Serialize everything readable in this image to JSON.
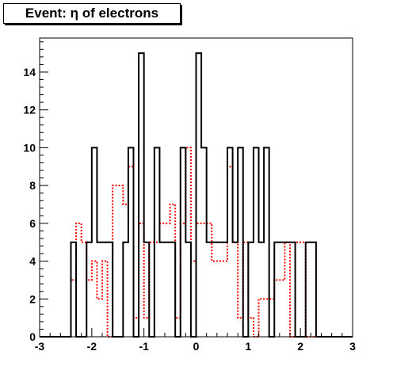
{
  "chart_data": {
    "type": "step-histogram",
    "title": "Event: η of electrons",
    "xlabel": "",
    "ylabel": "",
    "xlim": [
      -3,
      3
    ],
    "ylim": [
      0,
      15.8
    ],
    "x_ticks": [
      -3,
      -2,
      -1,
      0,
      1,
      2,
      3
    ],
    "y_ticks": [
      0,
      2,
      4,
      6,
      8,
      10,
      12,
      14
    ],
    "bin_edges": [
      -3.0,
      -2.4,
      -2.3,
      -2.2,
      -2.1,
      -2.0,
      -1.9,
      -1.8,
      -1.7,
      -1.6,
      -1.5,
      -1.4,
      -1.3,
      -1.2,
      -1.1,
      -1.0,
      -0.9,
      -0.8,
      -0.7,
      -0.6,
      -0.5,
      -0.4,
      -0.3,
      -0.2,
      -0.1,
      0.0,
      0.1,
      0.2,
      0.3,
      0.4,
      0.5,
      0.6,
      0.7,
      0.8,
      0.9,
      1.0,
      1.1,
      1.2,
      1.3,
      1.4,
      1.5,
      1.6,
      1.7,
      1.8,
      1.9,
      2.0,
      2.1,
      2.2,
      2.3,
      2.4,
      3.0
    ],
    "series": [
      {
        "color": "#000000",
        "linestyle": "solid",
        "values": [
          0,
          5,
          0,
          0,
          5,
          10,
          5,
          5,
          5,
          0,
          0,
          5,
          10,
          0,
          15,
          5,
          0,
          10,
          5,
          5,
          5,
          0,
          10,
          5,
          0,
          15,
          10,
          5,
          5,
          5,
          5,
          10,
          5,
          10,
          0,
          5,
          10,
          5,
          10,
          0,
          5,
          5,
          5,
          5,
          0,
          0,
          5,
          5,
          0,
          0
        ]
      },
      {
        "color": "#ff0000",
        "linestyle": "dotted",
        "values": [
          0,
          3,
          6,
          5,
          3,
          4,
          2,
          4,
          0,
          8,
          8,
          7,
          9,
          1,
          6,
          1,
          5,
          5,
          6,
          6,
          7,
          1,
          6,
          10,
          4,
          6,
          6,
          6,
          4,
          4,
          4,
          9,
          5,
          1,
          5,
          1,
          0,
          2,
          2,
          2,
          3,
          3,
          5,
          0,
          5,
          5,
          0,
          0,
          0,
          0
        ]
      }
    ]
  }
}
